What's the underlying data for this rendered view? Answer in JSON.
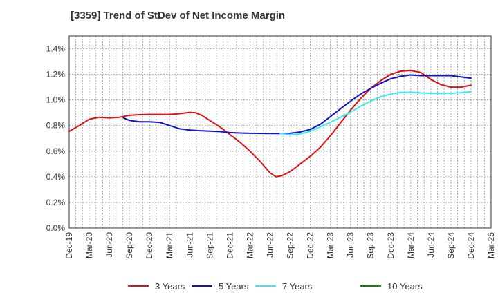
{
  "chart_data": {
    "type": "line",
    "title": "[3359]  Trend of StDev of Net Income Margin",
    "xlabel": "",
    "ylabel": "",
    "ylim": [
      0,
      1.5
    ],
    "y_ticks": [
      0,
      0.2,
      0.4,
      0.6,
      0.8,
      1.0,
      1.2,
      1.4
    ],
    "y_tick_labels": [
      "0.0%",
      "0.2%",
      "0.4%",
      "0.6%",
      "0.8%",
      "1.0%",
      "1.2%",
      "1.4%"
    ],
    "x_tick_labels": [
      "Dec-19",
      "Mar-20",
      "Jun-20",
      "Sep-20",
      "Dec-20",
      "Mar-21",
      "Jun-21",
      "Sep-21",
      "Dec-21",
      "Mar-22",
      "Jun-22",
      "Sep-22",
      "Dec-22",
      "Mar-23",
      "Jun-23",
      "Sep-23",
      "Dec-23",
      "Mar-24",
      "Jun-24",
      "Sep-24",
      "Dec-24",
      "Mar-25"
    ],
    "grid": true,
    "legend_position": "bottom",
    "series": [
      {
        "name": "3 Years",
        "color": "#dd1111",
        "points": [
          [
            0,
            0.755
          ],
          [
            0.5,
            0.8
          ],
          [
            1,
            0.85
          ],
          [
            1.5,
            0.865
          ],
          [
            2,
            0.86
          ],
          [
            2.5,
            0.865
          ],
          [
            3,
            0.88
          ],
          [
            3.5,
            0.885
          ],
          [
            4,
            0.887
          ],
          [
            4.5,
            0.887
          ],
          [
            5,
            0.887
          ],
          [
            5.5,
            0.893
          ],
          [
            6,
            0.903
          ],
          [
            6.3,
            0.9
          ],
          [
            6.6,
            0.88
          ],
          [
            7,
            0.84
          ],
          [
            7.5,
            0.79
          ],
          [
            8,
            0.73
          ],
          [
            8.5,
            0.67
          ],
          [
            9,
            0.6
          ],
          [
            9.5,
            0.52
          ],
          [
            10,
            0.43
          ],
          [
            10.3,
            0.4
          ],
          [
            10.6,
            0.41
          ],
          [
            11,
            0.44
          ],
          [
            11.5,
            0.5
          ],
          [
            12,
            0.56
          ],
          [
            12.5,
            0.63
          ],
          [
            13,
            0.72
          ],
          [
            13.5,
            0.82
          ],
          [
            14,
            0.92
          ],
          [
            14.5,
            1.01
          ],
          [
            15,
            1.09
          ],
          [
            15.5,
            1.15
          ],
          [
            16,
            1.2
          ],
          [
            16.5,
            1.225
          ],
          [
            17,
            1.23
          ],
          [
            17.5,
            1.215
          ],
          [
            18,
            1.16
          ],
          [
            18.5,
            1.12
          ],
          [
            19,
            1.1
          ],
          [
            19.5,
            1.1
          ],
          [
            20,
            1.115
          ]
        ]
      },
      {
        "name": "5 Years",
        "color": "#1111cc",
        "points": [
          [
            2.7,
            0.86
          ],
          [
            3,
            0.84
          ],
          [
            3.5,
            0.83
          ],
          [
            4,
            0.83
          ],
          [
            4.5,
            0.825
          ],
          [
            5,
            0.8
          ],
          [
            5.5,
            0.775
          ],
          [
            6,
            0.765
          ],
          [
            6.5,
            0.76
          ],
          [
            7,
            0.757
          ],
          [
            7.5,
            0.753
          ],
          [
            8,
            0.745
          ],
          [
            8.5,
            0.742
          ],
          [
            9,
            0.74
          ],
          [
            9.5,
            0.739
          ],
          [
            10,
            0.738
          ],
          [
            10.5,
            0.738
          ],
          [
            11,
            0.74
          ],
          [
            11.5,
            0.75
          ],
          [
            12,
            0.77
          ],
          [
            12.5,
            0.81
          ],
          [
            13,
            0.87
          ],
          [
            13.5,
            0.93
          ],
          [
            14,
            0.99
          ],
          [
            14.5,
            1.045
          ],
          [
            15,
            1.09
          ],
          [
            15.5,
            1.13
          ],
          [
            16,
            1.165
          ],
          [
            16.5,
            1.185
          ],
          [
            17,
            1.195
          ],
          [
            17.5,
            1.19
          ],
          [
            18,
            1.19
          ],
          [
            18.5,
            1.19
          ],
          [
            19,
            1.19
          ],
          [
            19.5,
            1.18
          ],
          [
            20,
            1.17
          ]
        ]
      },
      {
        "name": "7 Years",
        "color": "#33eeee",
        "points": [
          [
            10.5,
            0.738
          ],
          [
            11,
            0.728
          ],
          [
            11.5,
            0.735
          ],
          [
            12,
            0.755
          ],
          [
            12.5,
            0.79
          ],
          [
            13,
            0.825
          ],
          [
            13.5,
            0.865
          ],
          [
            14,
            0.905
          ],
          [
            14.5,
            0.95
          ],
          [
            15,
            0.99
          ],
          [
            15.5,
            1.025
          ],
          [
            16,
            1.045
          ],
          [
            16.5,
            1.058
          ],
          [
            17,
            1.06
          ],
          [
            17.5,
            1.055
          ],
          [
            18,
            1.052
          ],
          [
            18.5,
            1.05
          ],
          [
            19,
            1.052
          ],
          [
            19.5,
            1.056
          ],
          [
            20,
            1.065
          ]
        ]
      },
      {
        "name": "10 Years",
        "color": "#118811",
        "points": []
      }
    ]
  }
}
